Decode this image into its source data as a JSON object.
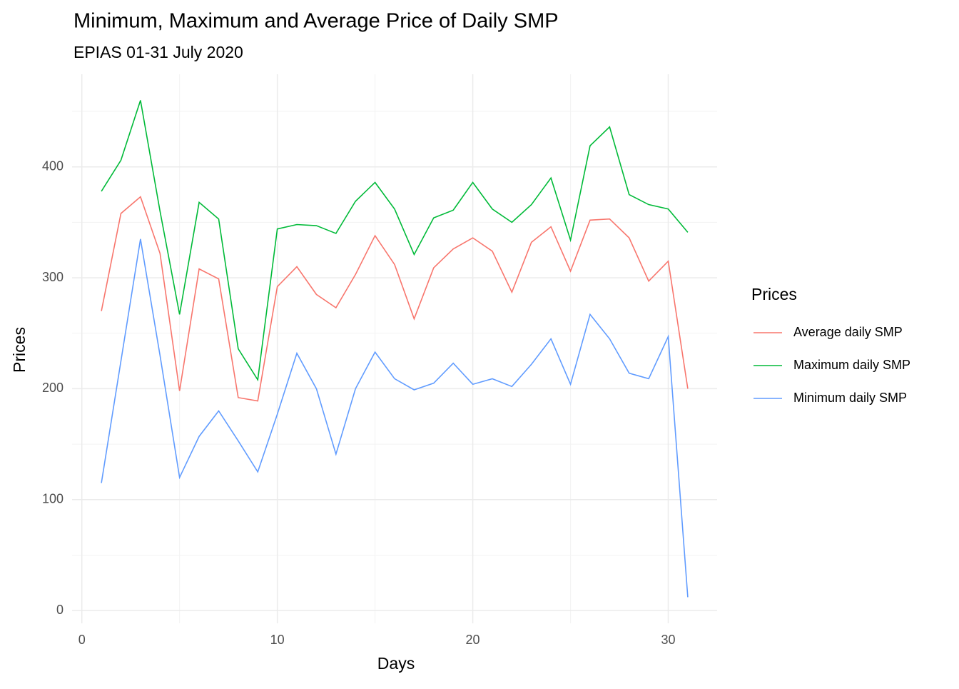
{
  "chart_data": {
    "type": "line",
    "title": "Minimum, Maximum and Average Price of Daily SMP",
    "subtitle": "EPIAS 01-31 July 2020",
    "x_label": "Days",
    "y_label": "Prices",
    "legend_title": "Prices",
    "legend_position": "right",
    "x": [
      1,
      2,
      3,
      4,
      5,
      6,
      7,
      8,
      9,
      10,
      11,
      12,
      13,
      14,
      15,
      16,
      17,
      18,
      19,
      20,
      21,
      22,
      23,
      24,
      25,
      26,
      27,
      28,
      29,
      30,
      31
    ],
    "series": [
      {
        "name": "Average daily SMP",
        "color": "#F8766D",
        "values": [
          270,
          358,
          373,
          322,
          198,
          308,
          299,
          192,
          189,
          292,
          310,
          285,
          273,
          303,
          338,
          312,
          263,
          309,
          326,
          336,
          324,
          287,
          332,
          346,
          306,
          352,
          353,
          336,
          297,
          315,
          200
        ]
      },
      {
        "name": "Maximum daily SMP",
        "color": "#00BA38",
        "values": [
          378,
          406,
          460,
          360,
          267,
          368,
          353,
          236,
          208,
          344,
          348,
          347,
          340,
          369,
          386,
          362,
          321,
          354,
          361,
          386,
          362,
          350,
          366,
          390,
          334,
          419,
          436,
          375,
          366,
          362,
          341
        ]
      },
      {
        "name": "Minimum daily SMP",
        "color": "#619CFF",
        "values": [
          115,
          225,
          335,
          230,
          120,
          157,
          180,
          153,
          125,
          177,
          232,
          200,
          141,
          200,
          233,
          209,
          199,
          205,
          223,
          204,
          209,
          202,
          222,
          245,
          204,
          267,
          245,
          214,
          209,
          247,
          12
        ]
      }
    ],
    "xlim": [
      -0.5,
      32.5
    ],
    "xticks": [
      0,
      10,
      20,
      30
    ],
    "xminor": [
      5,
      15,
      25
    ],
    "ylim": [
      -11.5,
      483.5
    ],
    "yticks": [
      0,
      100,
      200,
      300,
      400
    ],
    "yminor": [
      50,
      150,
      250,
      350,
      450
    ],
    "grid": true
  }
}
